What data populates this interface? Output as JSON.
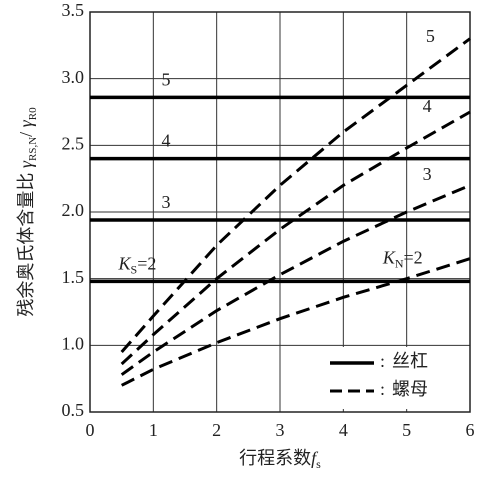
{
  "chart_data": {
    "type": "line",
    "x_label": {
      "text": "行程系数",
      "var": "f",
      "sub": "s"
    },
    "y_label": {
      "text": "残余奥氏体含量比 ",
      "var1": "γ",
      "sub1": "RS,N",
      "slash": "/ ",
      "var2": "γ",
      "sub2": "R0"
    },
    "xlim": [
      0,
      6
    ],
    "xticks": [
      0,
      1,
      2,
      3,
      4,
      5,
      6
    ],
    "ylim": [
      0.5,
      3.5
    ],
    "yticks": [
      0.5,
      {
        "value": 1,
        "label": "1.0"
      },
      1.5,
      {
        "value": 2,
        "label": "2.0"
      },
      2.5,
      {
        "value": 3,
        "label": "3.0"
      },
      3.5
    ],
    "grid": true,
    "legend": "lower right",
    "x": [
      0.5,
      1,
      2,
      3,
      4,
      5,
      6
    ],
    "series": [
      {
        "name": "丝杠",
        "color": "#000000",
        "dashed": false,
        "lines": [
          {
            "label": "K",
            "sub": "S",
            "rest": "=2",
            "value": 1.48
          },
          {
            "label": "3",
            "value": 1.94
          },
          {
            "label": "4",
            "value": 2.4
          },
          {
            "label": "5",
            "value": 2.86
          }
        ]
      },
      {
        "name": "螺母",
        "color": "#000000",
        "dashed": true,
        "lines": [
          {
            "label": "K",
            "sub": "N",
            "rest": "=2",
            "values": [
              0.7,
              0.82,
              1.02,
              1.2,
              1.36,
              1.5,
              1.65
            ]
          },
          {
            "label": "3",
            "values": [
              0.78,
              0.95,
              1.26,
              1.53,
              1.78,
              2.0,
              2.2
            ]
          },
          {
            "label": "4",
            "values": [
              0.86,
              1.08,
              1.5,
              1.87,
              2.2,
              2.48,
              2.75
            ]
          },
          {
            "label": "5",
            "values": [
              0.95,
              1.22,
              1.75,
              2.2,
              2.6,
              2.95,
              3.3
            ]
          }
        ]
      }
    ]
  }
}
